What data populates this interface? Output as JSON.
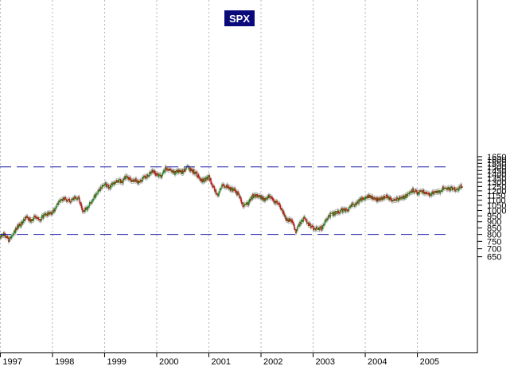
{
  "chart_data": {
    "type": "candlestick",
    "title": "SPX",
    "xlabel": "",
    "ylabel": "",
    "x_start": "1996-11",
    "x_end": "2005-12",
    "x_tick_labels": [
      "1997",
      "1998",
      "1999",
      "2000",
      "2001",
      "2002",
      "2003",
      "2004",
      "2005"
    ],
    "y_axis_side": "right",
    "ylim": [
      610,
      1700
    ],
    "y_tick_labels": [
      650,
      700,
      750,
      800,
      850,
      900,
      950,
      1000,
      1050,
      1100,
      1150,
      1200,
      1250,
      1300,
      1350,
      1400,
      1450,
      1500,
      1550,
      1600,
      1650
    ],
    "y_scale": "log",
    "grid": {
      "vertical": true,
      "horizontal": false
    },
    "reference_lines": [
      {
        "value": 1500,
        "color": "#1a1aa6",
        "style": "dashed"
      },
      {
        "value": 800,
        "color": "#1a1aa6",
        "style": "dashed"
      }
    ],
    "up_color": "#1e8c1e",
    "down_color": "#c81414",
    "envelope_color": "#b4b4b4",
    "series": [
      {
        "x": [
          "1996-11",
          "1996-12",
          "1997-01",
          "1997-02",
          "1997-03",
          "1997-04",
          "1997-05",
          "1997-06",
          "1997-07",
          "1997-08",
          "1997-09",
          "1997-10",
          "1997-11",
          "1997-12",
          "1998-01",
          "1998-02",
          "1998-03",
          "1998-04",
          "1998-05",
          "1998-06",
          "1998-07",
          "1998-08",
          "1998-09",
          "1998-10",
          "1998-11",
          "1998-12",
          "1999-01",
          "1999-02",
          "1999-03",
          "1999-04",
          "1999-05",
          "1999-06",
          "1999-07",
          "1999-08",
          "1999-09",
          "1999-10",
          "1999-11",
          "1999-12",
          "2000-01",
          "2000-02",
          "2000-03",
          "2000-04",
          "2000-05",
          "2000-06",
          "2000-07",
          "2000-08",
          "2000-09",
          "2000-10",
          "2000-11",
          "2000-12",
          "2001-01",
          "2001-02",
          "2001-03",
          "2001-04",
          "2001-05",
          "2001-06",
          "2001-07",
          "2001-08",
          "2001-09",
          "2001-10",
          "2001-11",
          "2001-12",
          "2002-01",
          "2002-02",
          "2002-03",
          "2002-04",
          "2002-05",
          "2002-06",
          "2002-07",
          "2002-08",
          "2002-09",
          "2002-10",
          "2002-11",
          "2002-12",
          "2003-01",
          "2003-02",
          "2003-03",
          "2003-04",
          "2003-05",
          "2003-06",
          "2003-07",
          "2003-08",
          "2003-09",
          "2003-10",
          "2003-11",
          "2003-12",
          "2004-01",
          "2004-02",
          "2004-03",
          "2004-04",
          "2004-05",
          "2004-06",
          "2004-07",
          "2004-08",
          "2004-09",
          "2004-10",
          "2004-11",
          "2004-12",
          "2005-01",
          "2005-02",
          "2005-03",
          "2005-04",
          "2005-05",
          "2005-06",
          "2005-07",
          "2005-08",
          "2005-09",
          "2005-10",
          "2005-11"
        ],
        "close": [
          690,
          745,
          790,
          800,
          760,
          810,
          860,
          885,
          950,
          900,
          950,
          915,
          955,
          970,
          980,
          1050,
          1100,
          1110,
          1090,
          1130,
          1120,
          990,
          1020,
          1095,
          1160,
          1220,
          1280,
          1240,
          1290,
          1330,
          1300,
          1370,
          1330,
          1330,
          1290,
          1360,
          1380,
          1450,
          1400,
          1370,
          1480,
          1450,
          1420,
          1440,
          1430,
          1500,
          1440,
          1420,
          1320,
          1330,
          1370,
          1240,
          1150,
          1250,
          1260,
          1220,
          1210,
          1140,
          1040,
          1060,
          1140,
          1150,
          1130,
          1100,
          1150,
          1080,
          1070,
          990,
          910,
          915,
          820,
          890,
          935,
          880,
          850,
          840,
          850,
          915,
          960,
          975,
          990,
          1005,
          1000,
          1050,
          1060,
          1110,
          1130,
          1140,
          1115,
          1105,
          1120,
          1140,
          1100,
          1105,
          1115,
          1130,
          1170,
          1210,
          1180,
          1200,
          1180,
          1160,
          1190,
          1190,
          1230,
          1220,
          1230,
          1210,
          1250
        ]
      }
    ]
  }
}
